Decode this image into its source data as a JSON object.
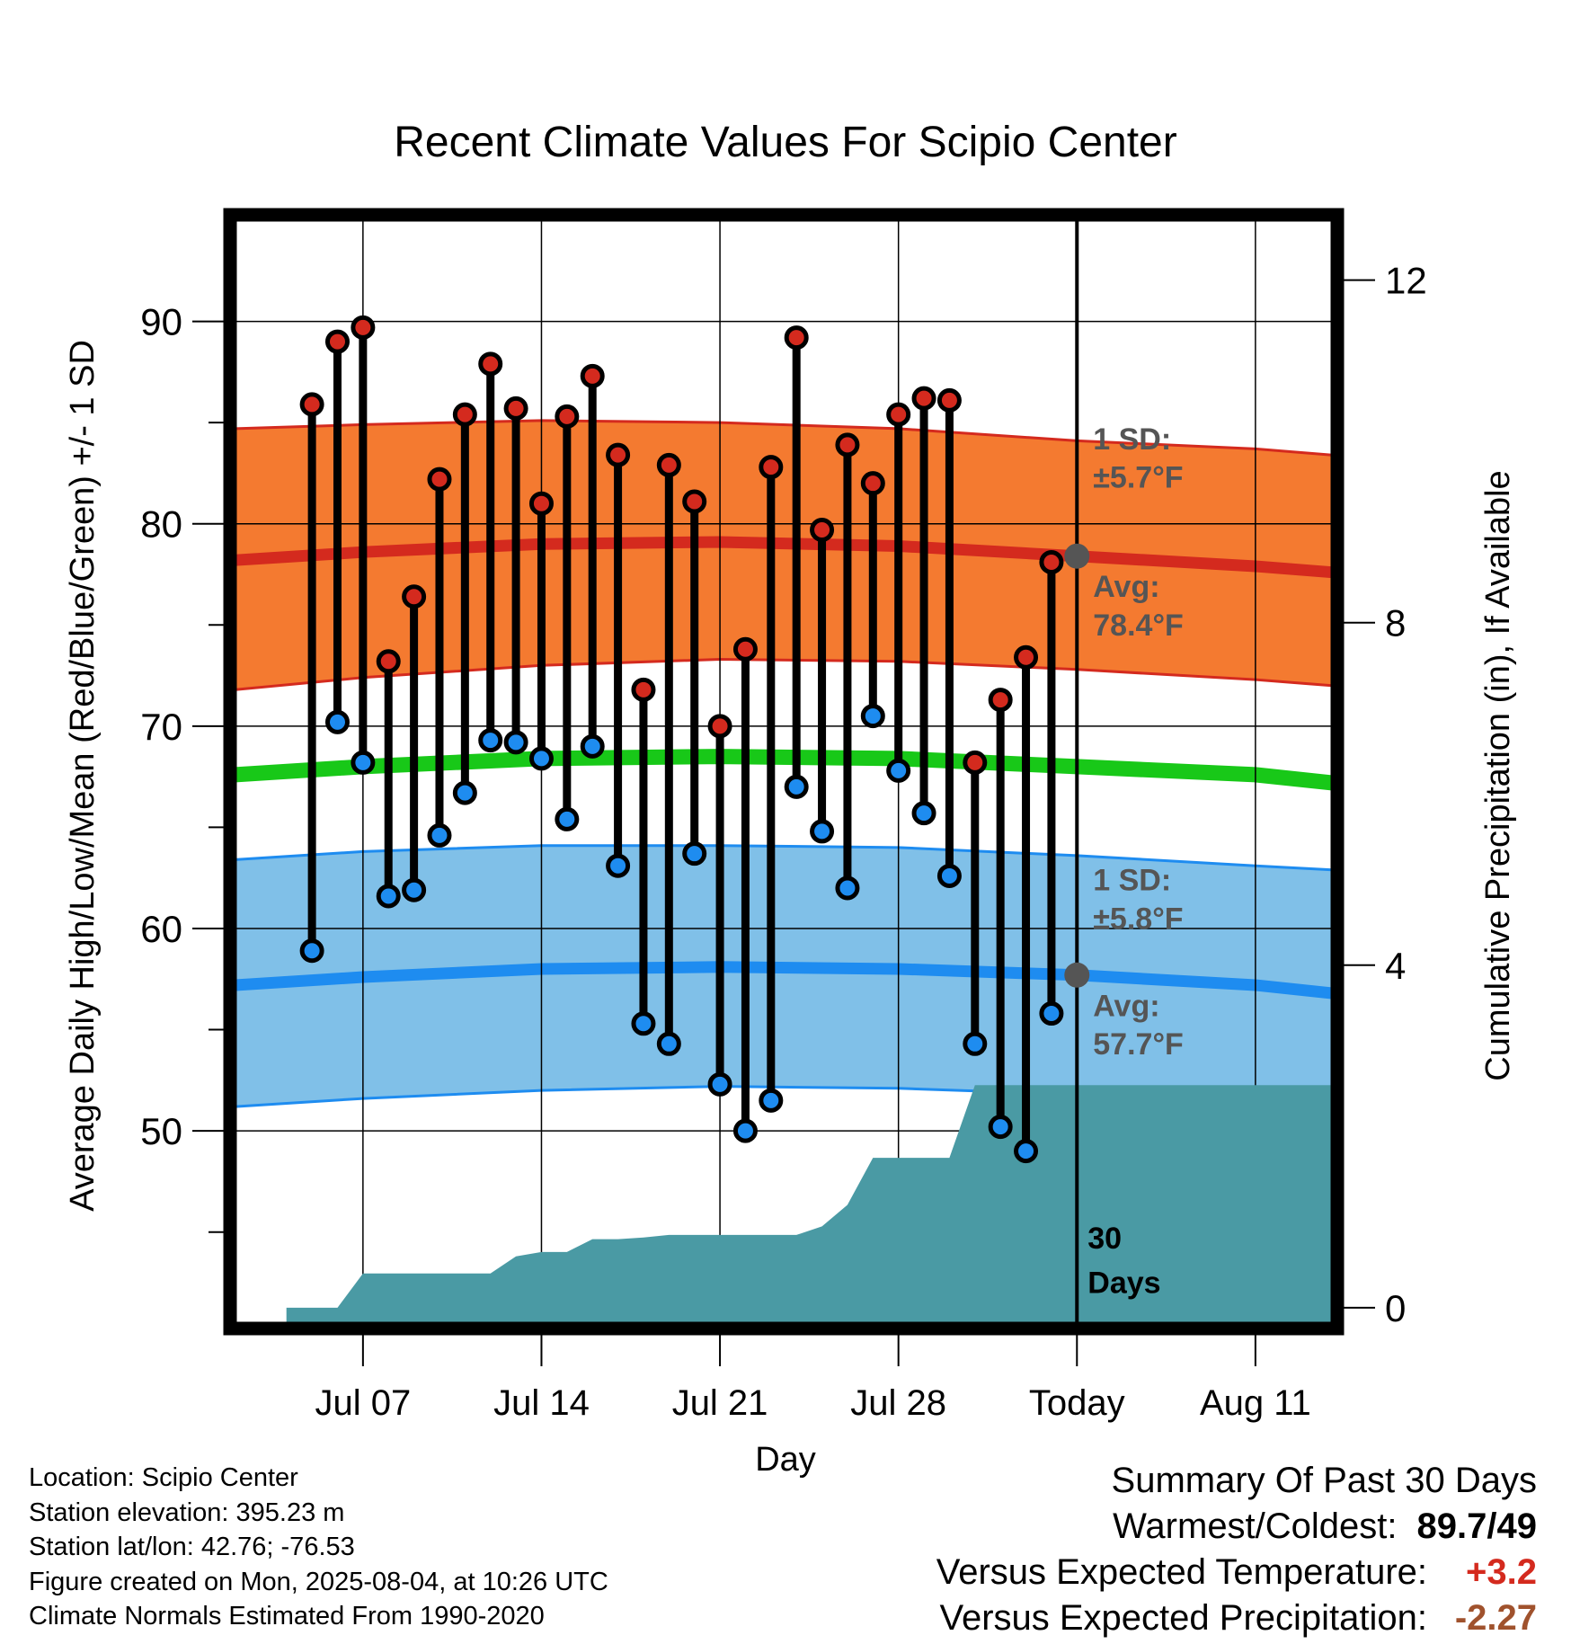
{
  "colors": {
    "high_band": "#f47a30",
    "high_band_edge": "#d42a1e",
    "high_avg_line": "#d42a1e",
    "low_band": "#80c0e8",
    "low_band_edge": "#1e8cf0",
    "low_avg_line": "#1e8cf0",
    "mean_line": "#18c818",
    "precip_fill": "#4a9aa4",
    "high_point": "#d42a1e",
    "low_point": "#1e8cf0",
    "annotation": "#555555",
    "today_marker": "#555555",
    "positive_value": "#d42a1e",
    "negative_value": "#a0522d"
  },
  "chart_data": {
    "type": "line",
    "title": "Recent Climate Values For Scipio Center",
    "xlabel": "Day",
    "ylabel": "Average Daily High/Low/Mean (Red/Blue/Green) +/- 1 SD",
    "y2label": "Cumulative Precipitation (in), If Available",
    "ylim": [
      40.5,
      95
    ],
    "y2lim": [
      -0.18,
      12.7
    ],
    "yticks": [
      90,
      80,
      70,
      60,
      50
    ],
    "yticks_minor": [
      85,
      75,
      65,
      55,
      45
    ],
    "y2ticks": [
      12,
      8,
      4,
      0
    ],
    "xlim": [
      "2025-07-02",
      "2025-08-14"
    ],
    "xticks": [
      {
        "date": "2025-07-07",
        "label": "Jul 07"
      },
      {
        "date": "2025-07-14",
        "label": "Jul 14"
      },
      {
        "date": "2025-07-21",
        "label": "Jul 21"
      },
      {
        "date": "2025-07-28",
        "label": "Jul 28"
      },
      {
        "date": "2025-08-04",
        "label": "Today"
      },
      {
        "date": "2025-08-11",
        "label": "Aug 11"
      }
    ],
    "grid": true,
    "today": "2025-08-04",
    "daily": {
      "dates": [
        "2025-07-05",
        "2025-07-06",
        "2025-07-07",
        "2025-07-08",
        "2025-07-09",
        "2025-07-10",
        "2025-07-11",
        "2025-07-12",
        "2025-07-13",
        "2025-07-14",
        "2025-07-15",
        "2025-07-16",
        "2025-07-17",
        "2025-07-18",
        "2025-07-19",
        "2025-07-20",
        "2025-07-21",
        "2025-07-22",
        "2025-07-23",
        "2025-07-24",
        "2025-07-25",
        "2025-07-26",
        "2025-07-27",
        "2025-07-28",
        "2025-07-29",
        "2025-07-30",
        "2025-07-31",
        "2025-08-01",
        "2025-08-02",
        "2025-08-03"
      ],
      "high": [
        85.9,
        89.0,
        89.7,
        73.2,
        76.4,
        82.2,
        85.4,
        87.9,
        85.7,
        81.0,
        85.3,
        87.3,
        83.4,
        71.8,
        82.9,
        81.1,
        70.0,
        73.8,
        82.8,
        89.2,
        79.7,
        83.9,
        82.0,
        85.4,
        86.2,
        86.1,
        68.2,
        71.3,
        73.4,
        78.1
      ],
      "low": [
        58.9,
        70.2,
        68.2,
        61.6,
        61.9,
        64.6,
        66.7,
        69.3,
        69.2,
        68.4,
        65.4,
        69.0,
        63.1,
        55.3,
        54.3,
        63.7,
        52.3,
        50.0,
        51.5,
        67.0,
        64.8,
        62.0,
        70.5,
        67.8,
        65.7,
        62.6,
        54.3,
        50.2,
        49.0,
        55.8
      ]
    },
    "normals": {
      "dates": [
        "2025-07-02",
        "2025-07-07",
        "2025-07-14",
        "2025-07-21",
        "2025-07-28",
        "2025-08-04",
        "2025-08-11",
        "2025-08-14"
      ],
      "high_avg": [
        78.2,
        78.6,
        79.0,
        79.1,
        78.9,
        78.4,
        77.9,
        77.6
      ],
      "high_sd_upper": [
        84.7,
        84.9,
        85.1,
        85.0,
        84.7,
        84.1,
        83.7,
        83.4
      ],
      "high_sd_lower": [
        71.8,
        72.4,
        73.0,
        73.3,
        73.2,
        72.8,
        72.3,
        72.0
      ],
      "mean_avg": [
        67.6,
        68.0,
        68.4,
        68.5,
        68.4,
        68.0,
        67.6,
        67.2
      ],
      "low_avg": [
        57.2,
        57.6,
        58.0,
        58.1,
        58.0,
        57.7,
        57.2,
        56.8
      ],
      "low_sd_upper": [
        63.4,
        63.8,
        64.1,
        64.1,
        64.0,
        63.6,
        63.1,
        62.9
      ],
      "low_sd_lower": [
        51.2,
        51.6,
        52.0,
        52.2,
        52.1,
        51.8,
        51.4,
        51.1
      ]
    },
    "precip_cumulative": {
      "dates": [
        "2025-07-04",
        "2025-07-06",
        "2025-07-07",
        "2025-07-08",
        "2025-07-09",
        "2025-07-10",
        "2025-07-11",
        "2025-07-12",
        "2025-07-13",
        "2025-07-14",
        "2025-07-15",
        "2025-07-16",
        "2025-07-17",
        "2025-07-18",
        "2025-07-19",
        "2025-07-20",
        "2025-07-21",
        "2025-07-22",
        "2025-07-23",
        "2025-07-24",
        "2025-07-25",
        "2025-07-26",
        "2025-07-27",
        "2025-07-28",
        "2025-07-29",
        "2025-07-30",
        "2025-07-31",
        "2025-08-01",
        "2025-08-02",
        "2025-08-03",
        "2025-08-04",
        "2025-08-14"
      ],
      "values": [
        0.0,
        0.0,
        0.4,
        0.4,
        0.4,
        0.4,
        0.4,
        0.4,
        0.6,
        0.65,
        0.65,
        0.8,
        0.8,
        0.82,
        0.85,
        0.85,
        0.85,
        0.85,
        0.85,
        0.85,
        0.95,
        1.2,
        1.75,
        1.75,
        1.75,
        1.75,
        2.6,
        2.6,
        2.6,
        2.6,
        2.6,
        2.6
      ]
    },
    "annotations": {
      "high_sd": "1 SD:",
      "high_sd_value": "±5.7°F",
      "high_avg": "Avg:",
      "high_avg_value": "78.4°F",
      "low_sd": "1 SD:",
      "low_sd_value": "±5.8°F",
      "low_avg": "Avg:",
      "low_avg_value": "57.7°F",
      "period_number": "30",
      "period_unit": "Days"
    },
    "today_markers": {
      "high_avg": 78.4,
      "low_avg": 57.7
    }
  },
  "footer": {
    "location": "Location: Scipio Center",
    "elevation": "Station elevation: 395.23 m",
    "latlon": "Station lat/lon: 42.76; -76.53",
    "created": "Figure created on Mon, 2025-08-04, at 10:26 UTC",
    "normals": "Climate Normals Estimated From 1990-2020"
  },
  "summary": {
    "title": "Summary Of Past 30 Days",
    "warmest_coldest_label": "Warmest/Coldest:",
    "warmest_coldest_value": "89.7/49",
    "temp_label": "Versus Expected Temperature:",
    "temp_value": "+3.2",
    "precip_label": "Versus Expected Precipitation:",
    "precip_value": "-2.27"
  }
}
